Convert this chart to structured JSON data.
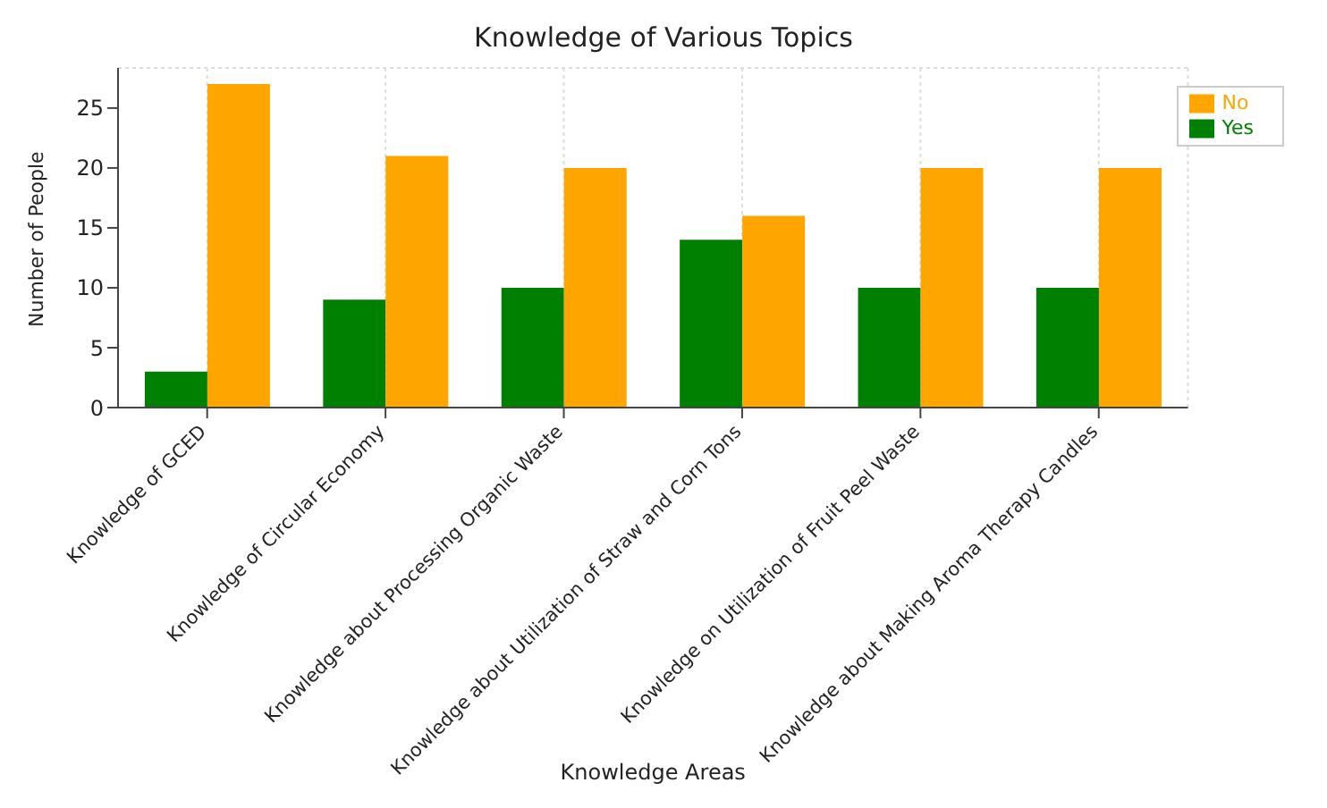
{
  "chart_data": {
    "type": "bar",
    "title": "Knowledge of Various Topics",
    "xlabel": "Knowledge Areas",
    "ylabel": "Number of People",
    "categories": [
      "Knowledge of GCED",
      "Knowledge of Circular Economy",
      "Knowledge about Processing Organic Waste",
      "Knowledge about Utilization of Straw and Corn Tons",
      "Knowledge on Utilization of Fruit Peel Waste",
      "Knowledge about Making Aroma Therapy Candles"
    ],
    "series": [
      {
        "name": "Yes",
        "color": "#008000",
        "values": [
          3,
          9,
          10,
          14,
          10,
          10
        ]
      },
      {
        "name": "No",
        "color": "#ffa500",
        "values": [
          27,
          21,
          20,
          16,
          20,
          20
        ]
      }
    ],
    "ylim": [
      0,
      28.35
    ],
    "yticks": [
      0,
      5,
      10,
      15,
      20,
      25
    ],
    "grid": true,
    "legend": "top right"
  }
}
